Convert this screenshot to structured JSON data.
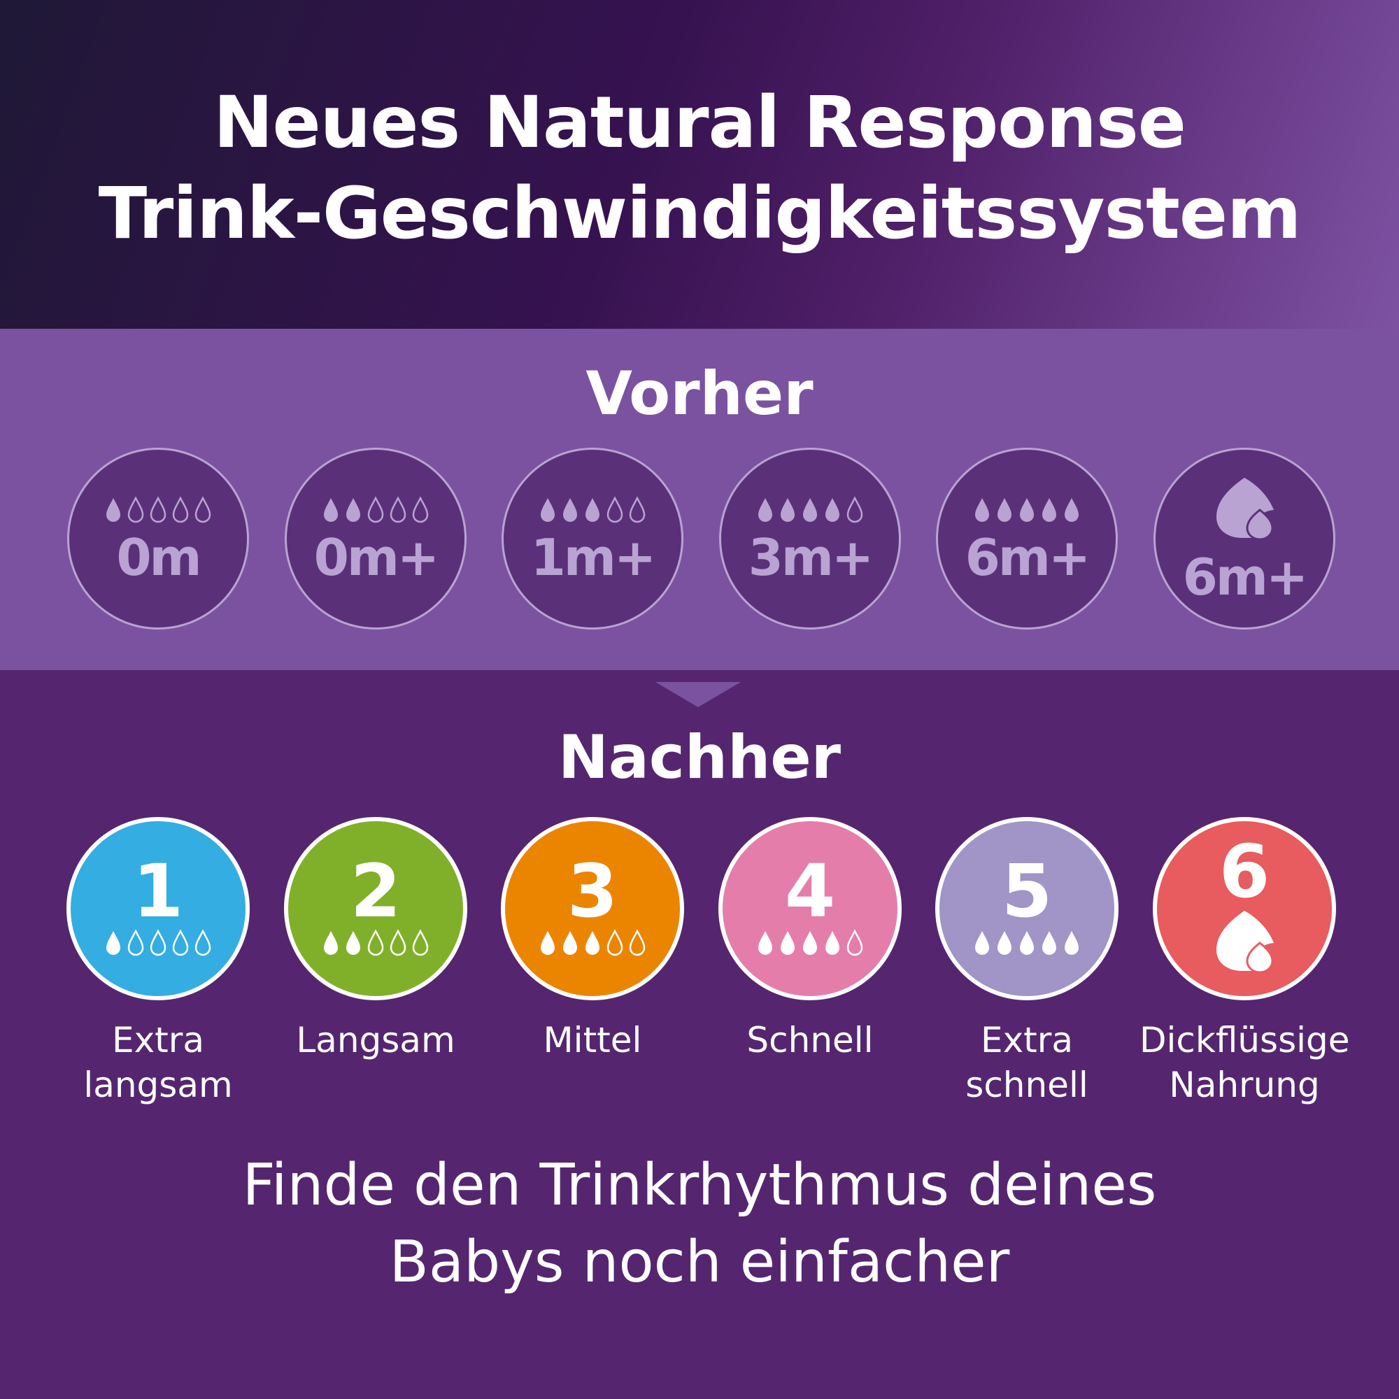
{
  "header": {
    "title_line1": "Neues Natural Response",
    "title_line2": "Trink-Geschwindigkeitssystem"
  },
  "before": {
    "title": "Vorher",
    "items": [
      {
        "age": "0m",
        "filled_drops": 1,
        "icon": "drops"
      },
      {
        "age": "0m+",
        "filled_drops": 2,
        "icon": "drops"
      },
      {
        "age": "1m+",
        "filled_drops": 3,
        "icon": "drops"
      },
      {
        "age": "3m+",
        "filled_drops": 4,
        "icon": "drops"
      },
      {
        "age": "6m+",
        "filled_drops": 5,
        "icon": "drops"
      },
      {
        "age": "6m+",
        "filled_drops": 0,
        "icon": "thick-drop"
      }
    ]
  },
  "after": {
    "title": "Nachher",
    "items": [
      {
        "number": "1",
        "filled_drops": 1,
        "icon": "drops",
        "color": "#33ade2",
        "label1": "Extra",
        "label2": "langsam"
      },
      {
        "number": "2",
        "filled_drops": 2,
        "icon": "drops",
        "color": "#80b02a",
        "label1": "Langsam",
        "label2": ""
      },
      {
        "number": "3",
        "filled_drops": 3,
        "icon": "drops",
        "color": "#eb8500",
        "label1": "Mittel",
        "label2": ""
      },
      {
        "number": "4",
        "filled_drops": 4,
        "icon": "drops",
        "color": "#e57dab",
        "label1": "Schnell",
        "label2": ""
      },
      {
        "number": "5",
        "filled_drops": 5,
        "icon": "drops",
        "color": "#a095c6",
        "label1": "Extra",
        "label2": "schnell"
      },
      {
        "number": "6",
        "filled_drops": 0,
        "icon": "thick-drop",
        "color": "#e85b5e",
        "label1": "Dickflüssige",
        "label2": "Nahrung"
      }
    ]
  },
  "tagline": {
    "line1": "Finde den Trinkrhythmus deines",
    "line2": "Babys noch einfacher"
  },
  "colors": {
    "background": "#55266f",
    "band": "#7b52a0",
    "old_circle": "#5a3179",
    "old_accent": "#b9a3d2"
  }
}
